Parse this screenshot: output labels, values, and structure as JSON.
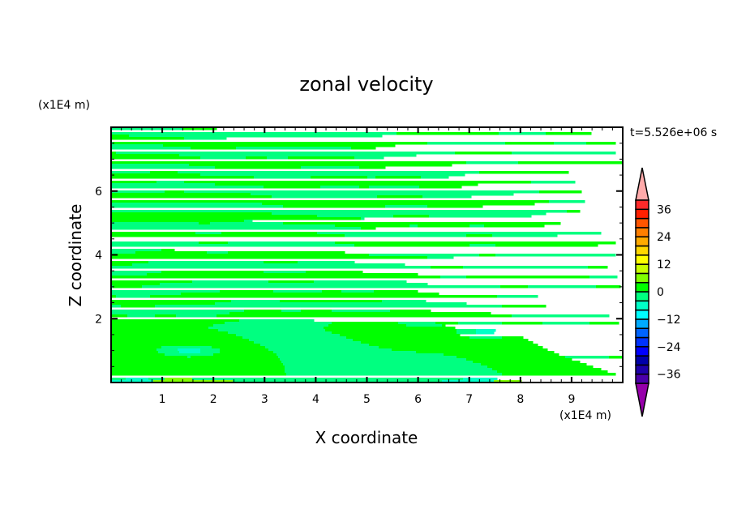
{
  "chart_data": {
    "type": "heatmap",
    "subtype": "filled-contour",
    "title": "zonal velocity",
    "xlabel": "X coordinate",
    "ylabel": "Z coordinate",
    "x_scale_label": "(x1E4 m)",
    "y_scale_label": "(x1E4 m)",
    "time_label": "t=5.526e+06 s",
    "xlim": [
      0,
      10
    ],
    "ylim": [
      0,
      8
    ],
    "xticks": [
      1,
      2,
      3,
      4,
      5,
      6,
      7,
      8,
      9
    ],
    "yticks": [
      2,
      4,
      6
    ],
    "grid": false,
    "colorbar": {
      "placement": "right",
      "levels": [
        -40,
        -36,
        -32,
        -28,
        -24,
        -20,
        -16,
        -12,
        -8,
        -4,
        0,
        4,
        8,
        12,
        16,
        20,
        24,
        28,
        32,
        36,
        40
      ],
      "tick_labels": [
        "36",
        "24",
        "12",
        "0",
        "-12",
        "-24",
        "-36"
      ],
      "tick_values": [
        36,
        24,
        12,
        0,
        -12,
        -24,
        -36
      ],
      "over_color": "#ffaaaa",
      "under_color": "#9600aa",
      "colors_low_to_high": [
        "#4b00aa",
        "#1e00aa",
        "#0000aa",
        "#0000ff",
        "#0032ff",
        "#0064ff",
        "#00aaff",
        "#00ffff",
        "#00ffc8",
        "#00ff80",
        "#00ff00",
        "#80ff00",
        "#c8ff00",
        "#ffff00",
        "#ffd700",
        "#ffaa00",
        "#ff7f00",
        "#ff5500",
        "#ff2000",
        "#ff2a2a"
      ]
    },
    "field_description_values": {
      "dominant_range": [
        -4,
        4
      ],
      "minimum_patches": [
        {
          "x": 1.5,
          "z": 1.0,
          "range": [
            -8,
            -4
          ]
        },
        {
          "x": 7.3,
          "z": 1.6,
          "range": [
            -8,
            -4
          ]
        }
      ],
      "maximum_patches": [
        {
          "x": 1.7,
          "z": 0.05,
          "range": [
            4,
            8
          ]
        },
        {
          "x": 7.6,
          "z": 0.05,
          "range": [
            4,
            8
          ]
        },
        {
          "x": 9.8,
          "z": 0.8,
          "range": [
            4,
            8
          ]
        }
      ]
    }
  }
}
